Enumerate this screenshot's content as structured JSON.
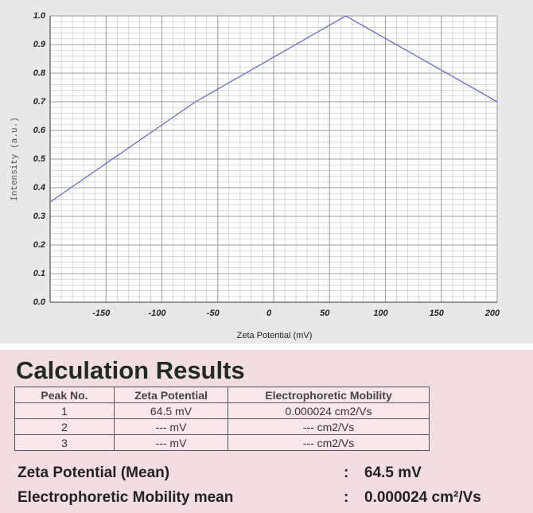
{
  "chart_data": {
    "type": "line",
    "xlabel": "Zeta Potential (mV)",
    "ylabel": "Intensity (a.u.)",
    "x": [
      -200,
      -70,
      64.5,
      200
    ],
    "series": [
      {
        "values": [
          0.35,
          0.7,
          1.0,
          0.7
        ],
        "color": "#6b6bd6"
      }
    ],
    "xlim": [
      -200,
      200
    ],
    "xticks": [
      -150,
      -100,
      -50,
      0,
      50,
      100,
      150,
      200
    ],
    "ylim": [
      0,
      1
    ],
    "yticks": [
      {
        "value": 0,
        "label": "0.0"
      },
      0.1,
      0.2,
      0.3,
      0.4,
      0.5,
      0.6,
      0.7,
      0.8,
      0.9,
      {
        "value": 1,
        "label": "1.0"
      }
    ],
    "grid": true
  },
  "results": {
    "title": "Calculation Results",
    "header": [
      "Peak No.",
      "Zeta Potential",
      "Electrophoretic Mobility"
    ],
    "rows": [
      [
        "1",
        "64.5 mV",
        "0.000024 cm2/Vs"
      ],
      [
        "2",
        "--- mV",
        "--- cm2/Vs"
      ],
      [
        "3",
        "--- mV",
        "--- cm2/Vs"
      ]
    ],
    "summary": [
      {
        "label": "Zeta Potential (Mean)",
        "sep": ":",
        "value": "64.5 mV"
      },
      {
        "label": "Electrophoretic Mobility mean",
        "sep": ":",
        "value": "0.000024 cm²/Vs"
      }
    ]
  }
}
